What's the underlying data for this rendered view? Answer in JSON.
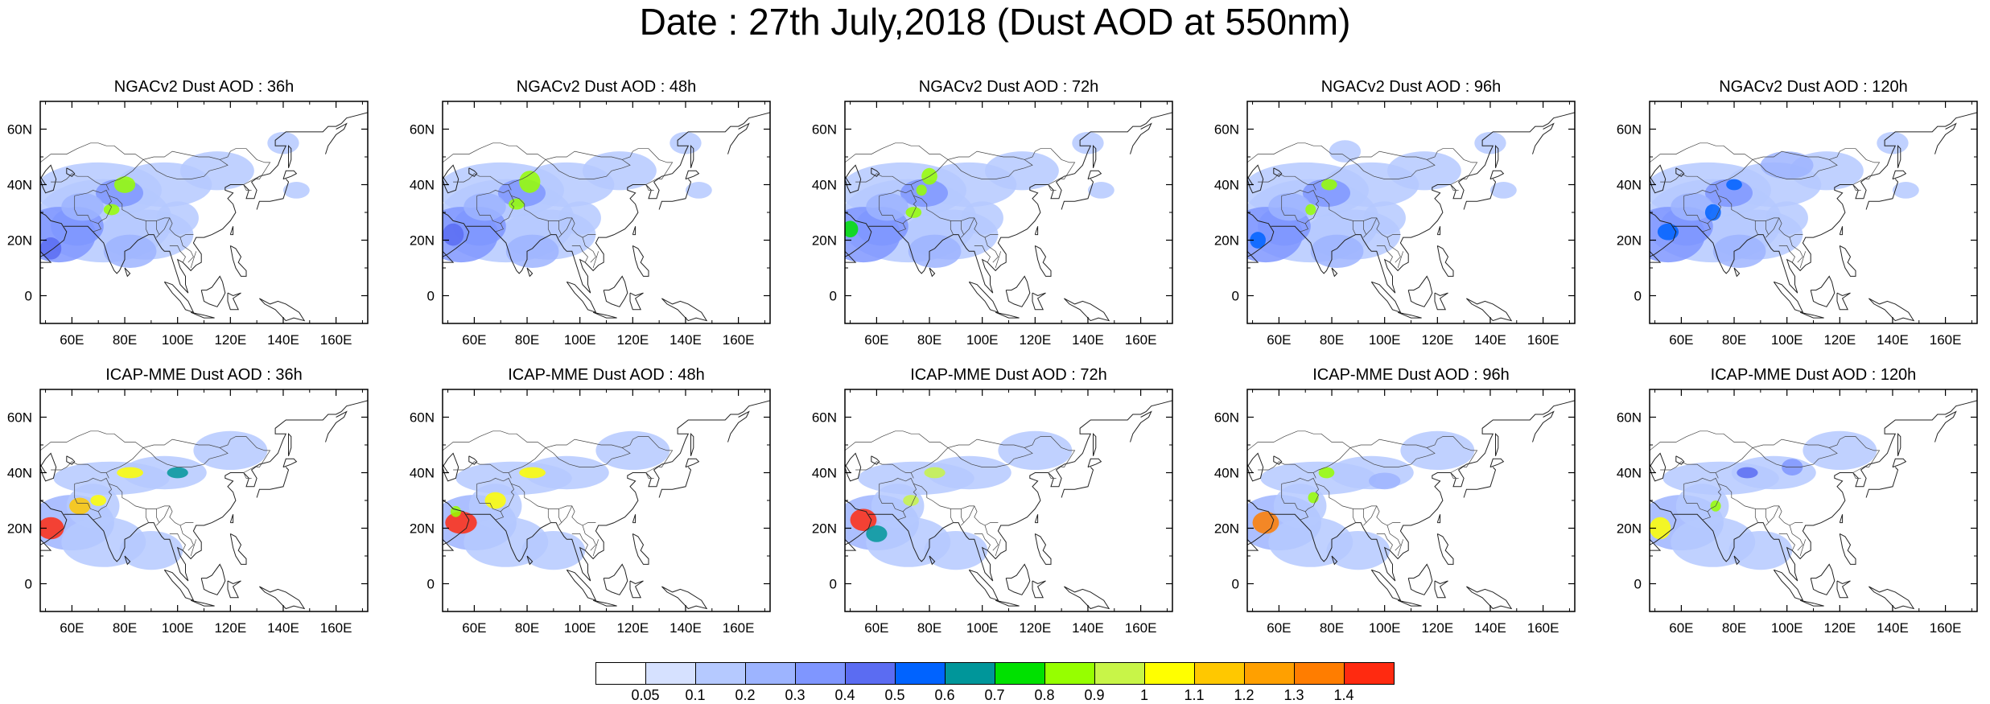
{
  "title": "Date : 27th July,2018 (Dust AOD at 550nm)",
  "panels": [
    {
      "title": "NGACv2 Dust AOD : 36h",
      "model": "NGACv2",
      "lead": "36h"
    },
    {
      "title": "NGACv2 Dust AOD : 48h",
      "model": "NGACv2",
      "lead": "48h"
    },
    {
      "title": "NGACv2 Dust AOD : 72h",
      "model": "NGACv2",
      "lead": "72h"
    },
    {
      "title": "NGACv2 Dust AOD : 96h",
      "model": "NGACv2",
      "lead": "96h"
    },
    {
      "title": "NGACv2 Dust AOD : 120h",
      "model": "NGACv2",
      "lead": "120h"
    },
    {
      "title": "ICAP-MME Dust AOD : 36h",
      "model": "ICAP-MME",
      "lead": "36h"
    },
    {
      "title": "ICAP-MME Dust AOD : 48h",
      "model": "ICAP-MME",
      "lead": "48h"
    },
    {
      "title": "ICAP-MME Dust AOD : 72h",
      "model": "ICAP-MME",
      "lead": "72h"
    },
    {
      "title": "ICAP-MME Dust AOD : 96h",
      "model": "ICAP-MME",
      "lead": "96h"
    },
    {
      "title": "ICAP-MME Dust AOD : 120h",
      "model": "ICAP-MME",
      "lead": "120h"
    }
  ],
  "map": {
    "lon_range": [
      48,
      172
    ],
    "lat_range": [
      -10,
      70
    ],
    "lon_ticks": [
      "60E",
      "80E",
      "100E",
      "120E",
      "140E",
      "160E"
    ],
    "lat_ticks": [
      "60N",
      "40N",
      "20N",
      "0"
    ]
  },
  "colorbar": {
    "labels": [
      "0.05",
      "0.1",
      "0.2",
      "0.3",
      "0.4",
      "0.5",
      "0.6",
      "0.7",
      "0.8",
      "0.9",
      "1",
      "1.1",
      "1.2",
      "1.3",
      "1.4"
    ],
    "colors": [
      "#ffffff",
      "#d6e1ff",
      "#b5c9ff",
      "#9db4ff",
      "#7f96ff",
      "#5b6cf2",
      "#0063ff",
      "#00969a",
      "#00e100",
      "#96ff00",
      "#c8f548",
      "#ffff00",
      "#ffc800",
      "#ffa000",
      "#ff7d00",
      "#ff2a10"
    ]
  }
}
